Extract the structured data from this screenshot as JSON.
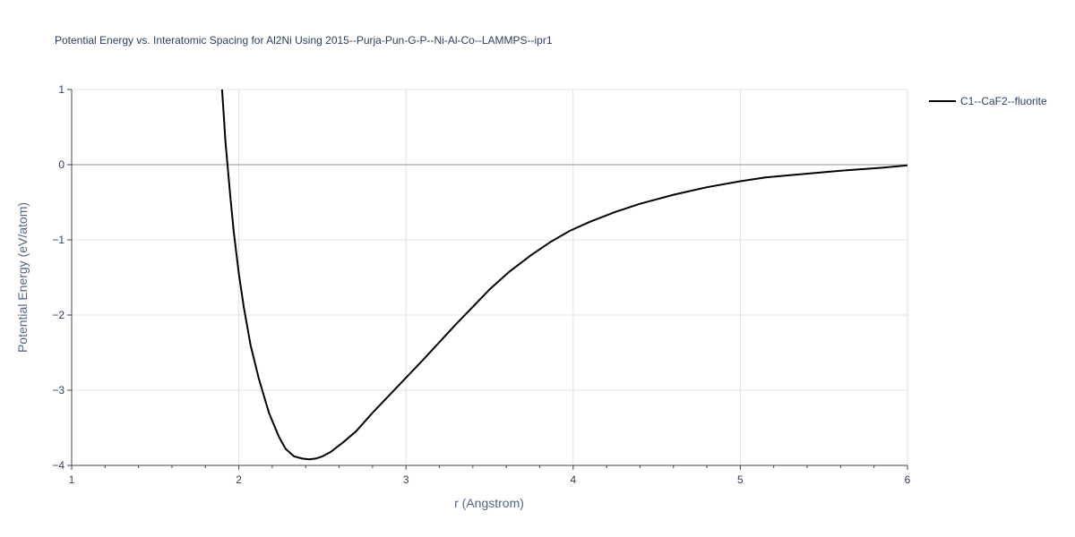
{
  "chart_data": {
    "type": "line",
    "title": "Potential Energy vs. Interatomic Spacing for Al2Ni Using 2015--Purja-Pun-G-P--Ni-Al-Co--LAMMPS--ipr1",
    "xlabel": "r (Angstrom)",
    "ylabel": "Potential Energy (eV/atom)",
    "xlim": [
      1,
      6
    ],
    "ylim": [
      -4,
      1
    ],
    "x_ticks": [
      "1",
      "2",
      "3",
      "4",
      "5",
      "6"
    ],
    "y_ticks": [
      "1",
      "0",
      "−1",
      "−2",
      "−3",
      "−4"
    ],
    "grid": true,
    "legend_position": "top-right",
    "series": [
      {
        "name": "C1--CaF2--fluorite",
        "color": "#000000",
        "x": [
          1.9,
          1.92,
          1.95,
          1.97,
          2.0,
          2.03,
          2.07,
          2.12,
          2.18,
          2.24,
          2.28,
          2.33,
          2.38,
          2.42,
          2.46,
          2.5,
          2.55,
          2.62,
          2.7,
          2.8,
          2.95,
          3.1,
          3.3,
          3.5,
          3.62,
          3.75,
          3.87,
          3.98,
          4.1,
          4.25,
          4.4,
          4.6,
          4.8,
          5.0,
          5.15,
          5.35,
          5.6,
          5.85,
          6.0
        ],
        "y": [
          1.0,
          0.3,
          -0.45,
          -0.9,
          -1.45,
          -1.9,
          -2.4,
          -2.85,
          -3.3,
          -3.62,
          -3.78,
          -3.88,
          -3.91,
          -3.92,
          -3.91,
          -3.88,
          -3.82,
          -3.7,
          -3.55,
          -3.3,
          -2.95,
          -2.6,
          -2.12,
          -1.66,
          -1.42,
          -1.2,
          -1.02,
          -0.88,
          -0.76,
          -0.63,
          -0.52,
          -0.4,
          -0.3,
          -0.22,
          -0.17,
          -0.13,
          -0.08,
          -0.04,
          -0.01
        ]
      }
    ]
  }
}
